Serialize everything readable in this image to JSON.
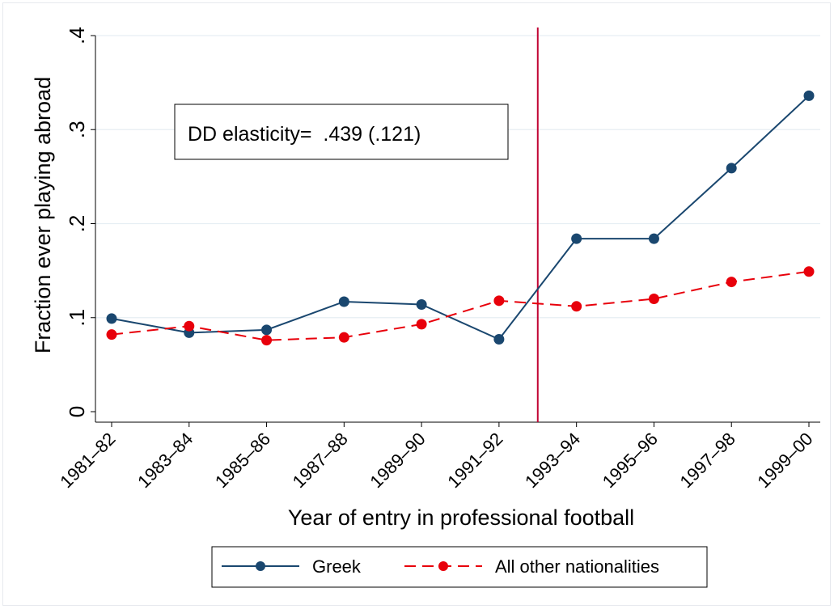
{
  "chart_data": {
    "type": "line",
    "title": "",
    "xlabel": "Year of entry in professional football",
    "ylabel": "Fraction ever playing abroad",
    "categories": [
      "1981–82",
      "1983–84",
      "1985–86",
      "1987–88",
      "1989–90",
      "1991–92",
      "1993–94",
      "1995–96",
      "1997–98",
      "1999–00"
    ],
    "ylim": [
      0,
      0.4
    ],
    "yticks": [
      0,
      0.1,
      0.2,
      0.3,
      0.4
    ],
    "ytick_labels": [
      "0",
      ".1",
      ".2",
      ".3",
      ".4"
    ],
    "grid": true,
    "series": [
      {
        "name": "Greek",
        "color": "#1a476f",
        "dash": "solid",
        "values": [
          0.099,
          0.084,
          0.087,
          0.117,
          0.114,
          0.077,
          0.184,
          0.184,
          0.259,
          0.336
        ]
      },
      {
        "name": "All other nationalities",
        "color": "#e8000b",
        "dash": "dashed",
        "values": [
          0.082,
          0.091,
          0.076,
          0.079,
          0.093,
          0.118,
          0.112,
          0.12,
          0.138,
          0.149
        ]
      }
    ],
    "reference_line": {
      "between": [
        "1991–92",
        "1993–94"
      ],
      "color": "#c10534"
    },
    "annotation": "DD elasticity=  .439 (.121)",
    "legend_position": "bottom"
  }
}
